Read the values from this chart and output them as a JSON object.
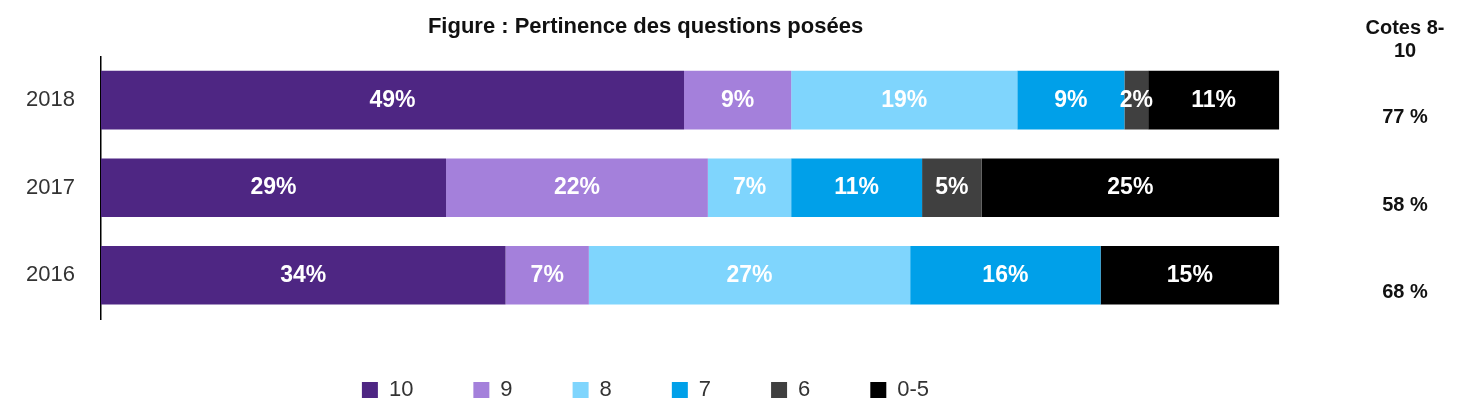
{
  "chart_data": {
    "type": "bar",
    "orientation": "horizontal",
    "stacked": true,
    "title": "Figure : Pertinence des questions posées",
    "categories": [
      "2018",
      "2017",
      "2016"
    ],
    "series": [
      {
        "name": "10",
        "color": "#4e2683",
        "values": [
          49,
          29,
          34
        ],
        "value_labels": [
          "49%",
          "29%",
          "34%"
        ]
      },
      {
        "name": "9",
        "color": "#a480db",
        "values": [
          9,
          22,
          7
        ],
        "value_labels": [
          "9%",
          "22%",
          "7%"
        ]
      },
      {
        "name": "8",
        "color": "#7fd5fd",
        "values": [
          19,
          7,
          27
        ],
        "value_labels": [
          "19%",
          "7%",
          "27%"
        ]
      },
      {
        "name": "7",
        "color": "#00a0e9",
        "values": [
          9,
          11,
          16
        ],
        "value_labels": [
          "9%",
          "11%",
          "16%"
        ]
      },
      {
        "name": "6",
        "color": "#404040",
        "values": [
          2,
          5,
          null
        ],
        "value_labels": [
          "2%",
          "5%",
          null
        ]
      },
      {
        "name": "0-5",
        "color": "#000000",
        "values": [
          11,
          25,
          15
        ],
        "value_labels": [
          "11%",
          "25%",
          "15%"
        ]
      }
    ],
    "tick_labels": "y",
    "grid": false,
    "legend": "bottom",
    "annotations": [
      "Cotes 8-10",
      "77 %",
      "58 %",
      "68 %"
    ]
  }
}
